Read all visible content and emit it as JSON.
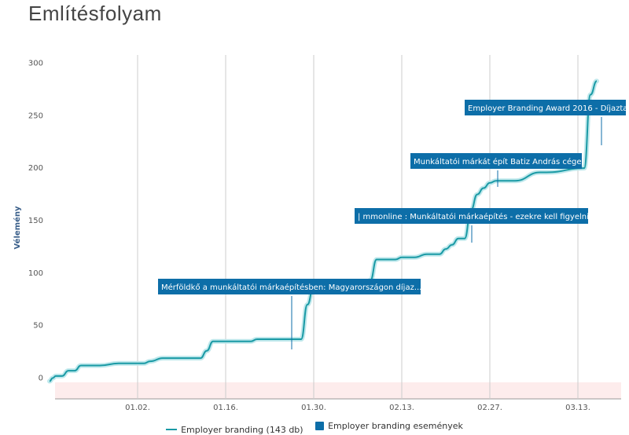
{
  "title": "Említésfolyam",
  "colors": {
    "line": "#1a9aa5",
    "event": "#0d6ea8",
    "negative_band": "#fdecec",
    "grid": "#cccccc"
  },
  "legend": {
    "series_label": "Employer branding (143 db)",
    "events_label": "Employer branding események"
  },
  "chart_data": {
    "type": "line",
    "ylabel": "Vélemény",
    "ylim": [
      -20,
      305
    ],
    "y_ticks": [
      0,
      50,
      100,
      150,
      200,
      250,
      300
    ],
    "x_ticks": [
      "01.02.",
      "01.16.",
      "01.30.",
      "02.13.",
      "02.27.",
      "03.13."
    ],
    "grid": "vertical",
    "series": [
      {
        "name": "Employer branding",
        "x": [
          -14,
          -13.5,
          -13,
          -12,
          -11,
          -10,
          -9,
          -8,
          -7,
          -6,
          -3,
          -2,
          1,
          2,
          4,
          10,
          11,
          12,
          18,
          19,
          23,
          24,
          26,
          27,
          28,
          30,
          31,
          35,
          36,
          37,
          38,
          41,
          42,
          44,
          46,
          48,
          49,
          50,
          51,
          52,
          53,
          54,
          55,
          56,
          57,
          60,
          64,
          65,
          71,
          72,
          73
        ],
        "y": [
          -3,
          0,
          2,
          2,
          7,
          7,
          12,
          12,
          12,
          12,
          14,
          14,
          14,
          16,
          19,
          19,
          26,
          35,
          35,
          37,
          37,
          37,
          37,
          70,
          88,
          90,
          90,
          90,
          90,
          93,
          113,
          113,
          115,
          115,
          118,
          118,
          123,
          127,
          133,
          133,
          160,
          175,
          181,
          186,
          188,
          188,
          196,
          196,
          200,
          270,
          283
        ]
      }
    ],
    "annotations": [
      "Mérföldkő a munkáltatói márkaépítésben: Magyarországon díjaz...",
      "| mmonline : Munkáltatói márkaépítés - ezekre kell figyelni",
      "Munkáltatói márkát épít Batiz András cége",
      "Employer Branding Award 2016 - Díjazta"
    ]
  }
}
